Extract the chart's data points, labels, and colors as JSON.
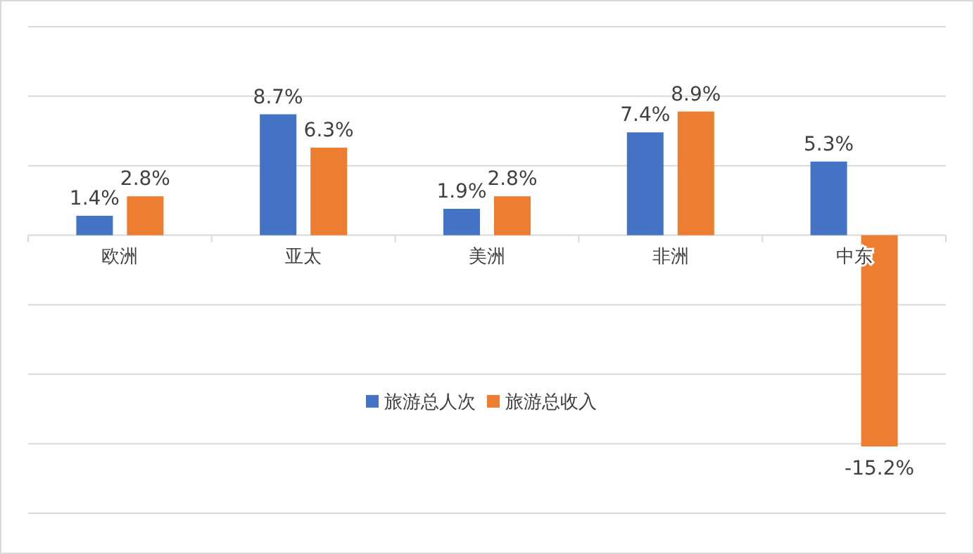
{
  "chart_data": {
    "type": "bar",
    "categories": [
      "欧洲",
      "亚太",
      "美洲",
      "非洲",
      "中东"
    ],
    "series": [
      {
        "name": "旅游总人次",
        "color": "#4472c4",
        "values": [
          1.4,
          8.7,
          1.9,
          7.4,
          5.3
        ],
        "value_labels": [
          "1.4%",
          "8.7%",
          "1.9%",
          "7.4%",
          "5.3%"
        ]
      },
      {
        "name": "旅游总收入",
        "color": "#ed7d31",
        "values": [
          2.8,
          6.3,
          2.8,
          8.9,
          -15.2
        ],
        "value_labels": [
          "2.8%",
          "6.3%",
          "2.8%",
          "8.9%",
          "-15.2%"
        ]
      }
    ],
    "ylim": [
      -20,
      15
    ],
    "yticks": [
      {
        "value": -20,
        "label": null
      },
      {
        "value": -15,
        "label": null
      },
      {
        "value": -10,
        "label": null
      },
      {
        "value": -5,
        "label": null
      },
      {
        "value": 0,
        "label": null
      },
      {
        "value": 5,
        "label": null
      },
      {
        "value": 10,
        "label": null
      },
      {
        "value": 15,
        "label": null
      }
    ],
    "grid": "y",
    "legend": "bottom",
    "tick_labels": "x"
  }
}
